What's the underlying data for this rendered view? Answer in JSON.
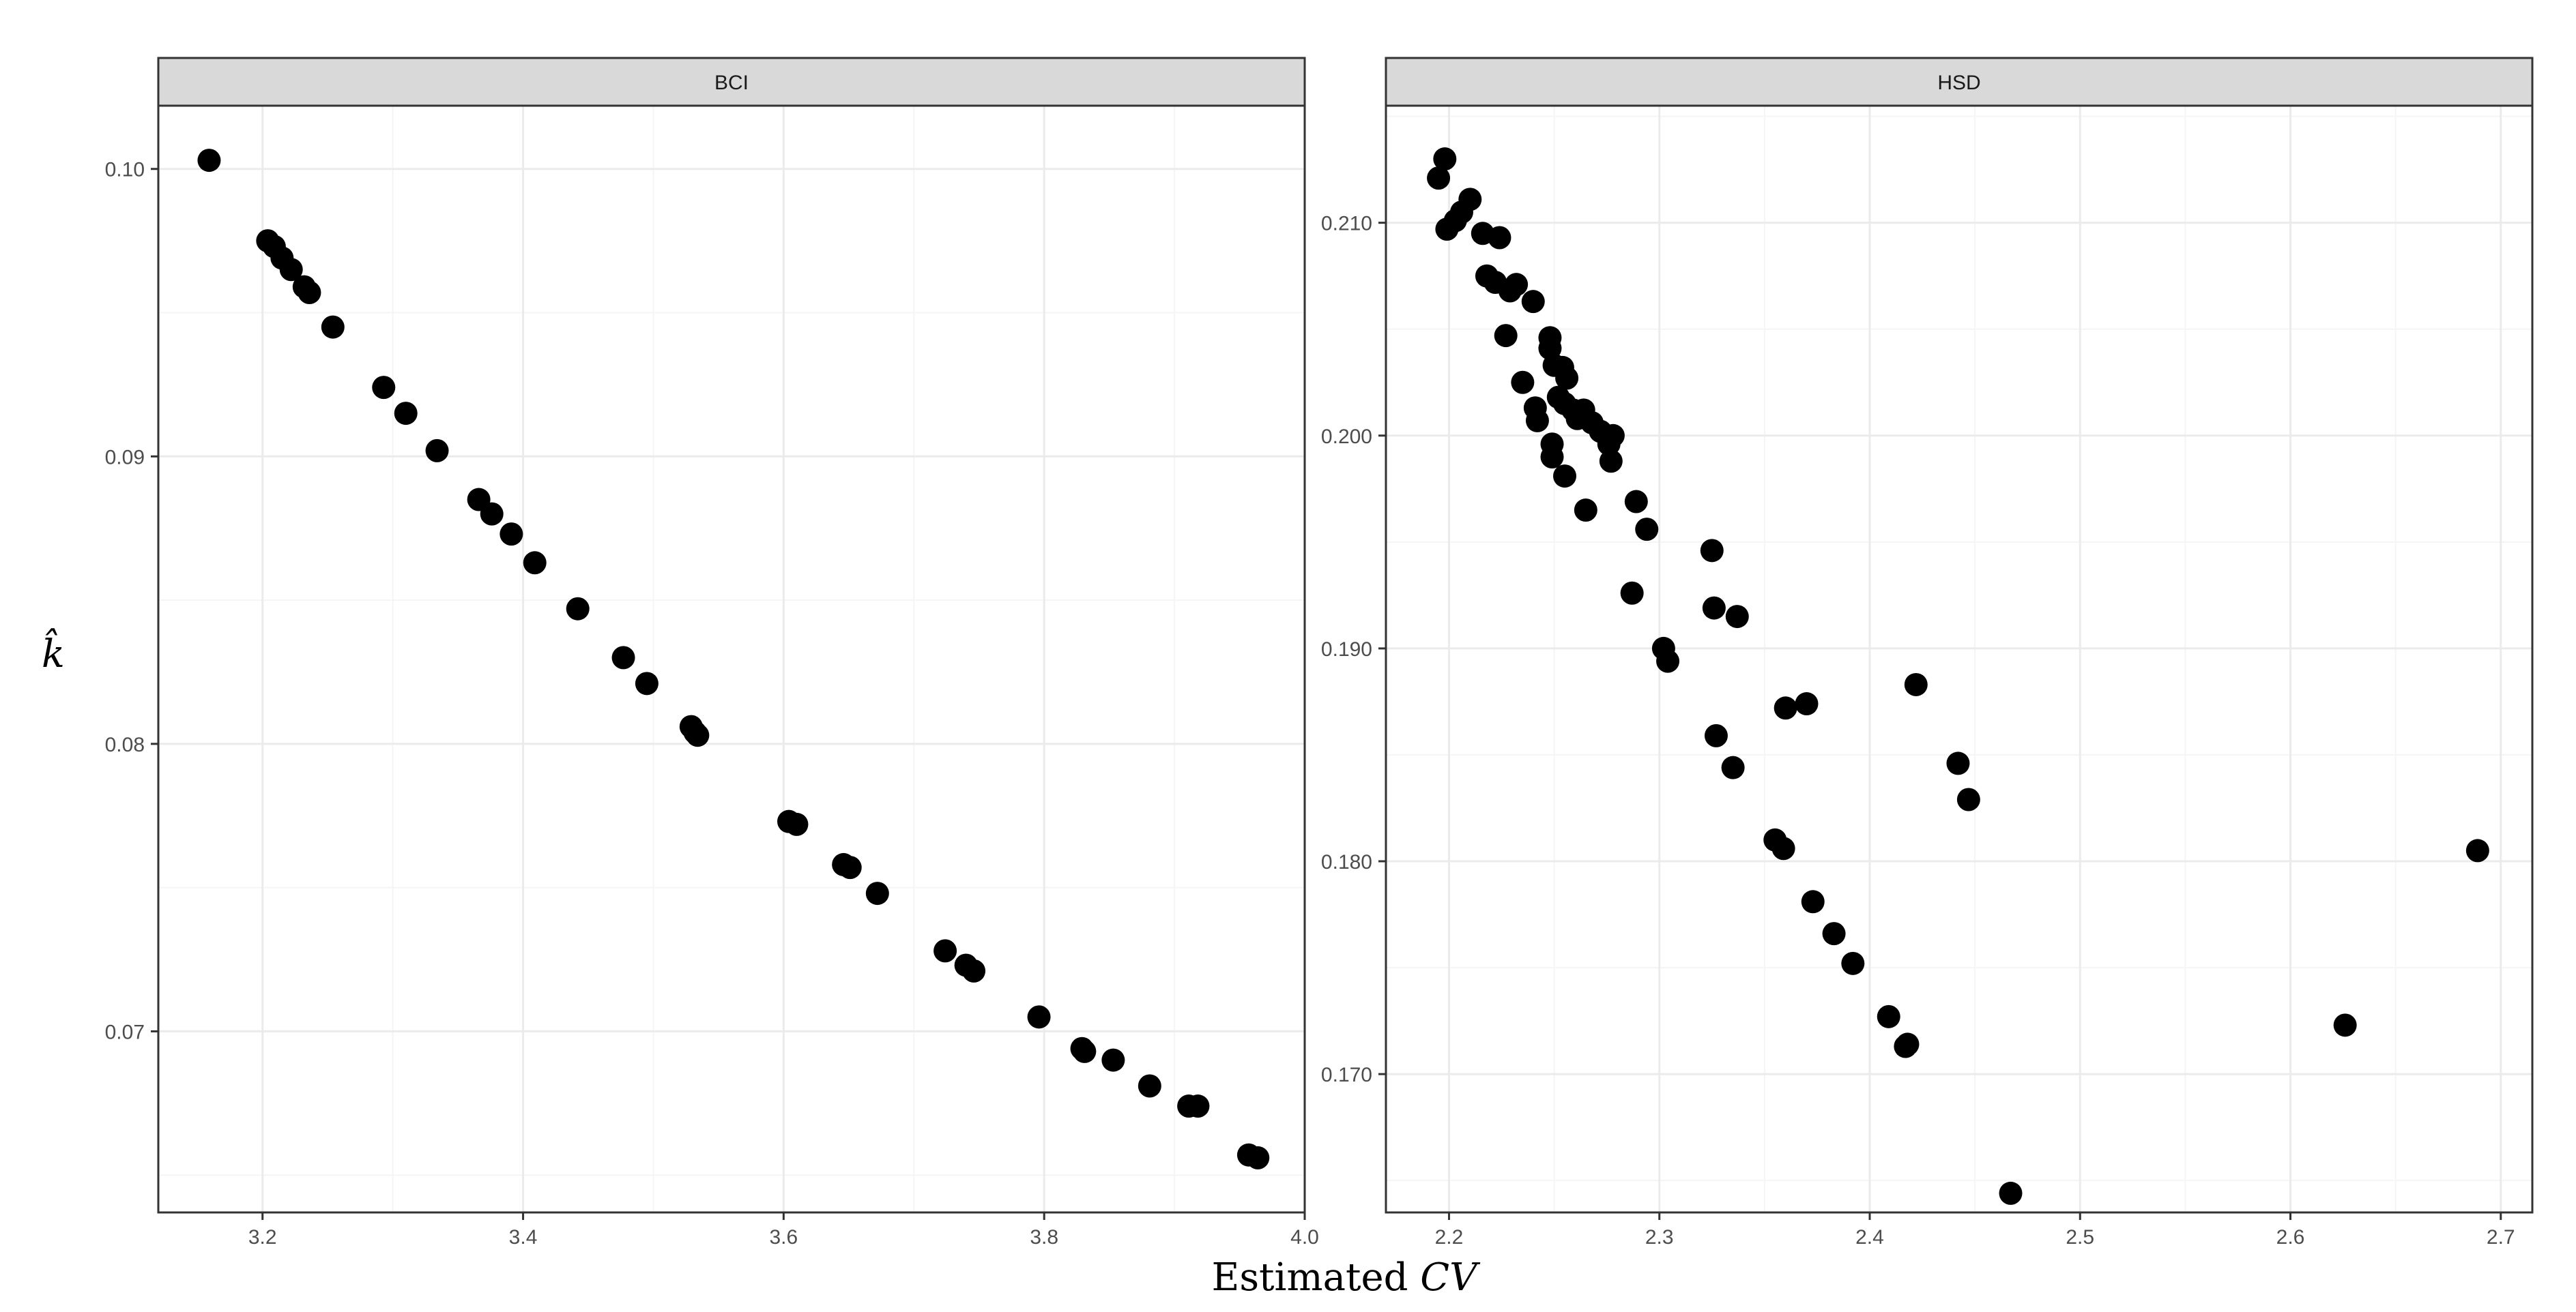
{
  "colors": {
    "point": "#000000",
    "panel_border": "#333333",
    "strip_fill": "#d9d9d9",
    "grid_major": "#ebebeb",
    "grid_minor": "#f5f5f5"
  },
  "axes": {
    "x_title_prefix": "Estimated ",
    "x_title_math": "CV",
    "y_title": "k̂"
  },
  "chart_data": [
    {
      "type": "scatter",
      "title": "BCI",
      "xlim": [
        3.12,
        4.0
      ],
      "ylim": [
        0.0637,
        0.1022
      ],
      "x_ticks": [
        3.2,
        3.4,
        3.6,
        3.8,
        4.0
      ],
      "x_tick_labels": [
        "3.2",
        "3.4",
        "3.6",
        "3.8",
        "4.0"
      ],
      "y_ticks": [
        0.07,
        0.08,
        0.09,
        0.1
      ],
      "y_tick_labels": [
        "0.07",
        "0.08",
        "0.09",
        "0.10"
      ],
      "grid": true,
      "points": [
        [
          3.159,
          0.1003
        ],
        [
          3.204,
          0.0975
        ],
        [
          3.209,
          0.0973
        ],
        [
          3.215,
          0.0969
        ],
        [
          3.222,
          0.0965
        ],
        [
          3.232,
          0.0959
        ],
        [
          3.236,
          0.0957
        ],
        [
          3.254,
          0.0945
        ],
        [
          3.293,
          0.0924
        ],
        [
          3.31,
          0.0915
        ],
        [
          3.334,
          0.0902
        ],
        [
          3.366,
          0.0885
        ],
        [
          3.376,
          0.088
        ],
        [
          3.391,
          0.0873
        ],
        [
          3.409,
          0.0863
        ],
        [
          3.442,
          0.0847
        ],
        [
          3.477,
          0.083
        ],
        [
          3.495,
          0.0821
        ],
        [
          3.529,
          0.0806
        ],
        [
          3.532,
          0.0804
        ],
        [
          3.534,
          0.0803
        ],
        [
          3.604,
          0.0773
        ],
        [
          3.61,
          0.0772
        ],
        [
          3.646,
          0.0758
        ],
        [
          3.651,
          0.0757
        ],
        [
          3.672,
          0.0748
        ],
        [
          3.724,
          0.0728
        ],
        [
          3.74,
          0.0723
        ],
        [
          3.746,
          0.0721
        ],
        [
          3.796,
          0.0705
        ],
        [
          3.829,
          0.0694
        ],
        [
          3.831,
          0.0693
        ],
        [
          3.853,
          0.069
        ],
        [
          3.881,
          0.0681
        ],
        [
          3.911,
          0.0674
        ],
        [
          3.918,
          0.0674
        ],
        [
          3.957,
          0.0657
        ],
        [
          3.964,
          0.0656
        ]
      ]
    },
    {
      "type": "scatter",
      "title": "HSD",
      "xlim": [
        2.17,
        2.715
      ],
      "ylim": [
        0.1635,
        0.2155
      ],
      "x_ticks": [
        2.2,
        2.3,
        2.4,
        2.5,
        2.6,
        2.7
      ],
      "x_tick_labels": [
        "2.2",
        "2.3",
        "2.4",
        "2.5",
        "2.6",
        "2.7"
      ],
      "y_ticks": [
        0.17,
        0.18,
        0.19,
        0.2,
        0.21
      ],
      "y_tick_labels": [
        "0.170",
        "0.180",
        "0.190",
        "0.200",
        "0.210"
      ],
      "grid": true,
      "points": [
        [
          2.195,
          0.2121
        ],
        [
          2.198,
          0.213
        ],
        [
          2.199,
          0.2097
        ],
        [
          2.203,
          0.2101
        ],
        [
          2.206,
          0.2105
        ],
        [
          2.21,
          0.2111
        ],
        [
          2.216,
          0.2095
        ],
        [
          2.218,
          0.2075
        ],
        [
          2.222,
          0.2072
        ],
        [
          2.224,
          0.2093
        ],
        [
          2.227,
          0.2047
        ],
        [
          2.229,
          0.2068
        ],
        [
          2.232,
          0.2071
        ],
        [
          2.235,
          0.2025
        ],
        [
          2.24,
          0.2063
        ],
        [
          2.241,
          0.2013
        ],
        [
          2.242,
          0.2007
        ],
        [
          2.248,
          0.2046
        ],
        [
          2.248,
          0.2041
        ],
        [
          2.249,
          0.1996
        ],
        [
          2.249,
          0.199
        ],
        [
          2.25,
          0.2033
        ],
        [
          2.252,
          0.2018
        ],
        [
          2.254,
          0.2032
        ],
        [
          2.255,
          0.2015
        ],
        [
          2.256,
          0.2027
        ],
        [
          2.255,
          0.1981
        ],
        [
          2.259,
          0.2012
        ],
        [
          2.261,
          0.2008
        ],
        [
          2.264,
          0.2012
        ],
        [
          2.265,
          0.1965
        ],
        [
          2.268,
          0.2006
        ],
        [
          2.272,
          0.2002
        ],
        [
          2.276,
          0.1996
        ],
        [
          2.277,
          0.1988
        ],
        [
          2.278,
          0.2
        ],
        [
          2.287,
          0.1926
        ],
        [
          2.289,
          0.1969
        ],
        [
          2.294,
          0.1956
        ],
        [
          2.302,
          0.19
        ],
        [
          2.304,
          0.1894
        ],
        [
          2.325,
          0.1946
        ],
        [
          2.326,
          0.1919
        ],
        [
          2.327,
          0.1859
        ],
        [
          2.335,
          0.1844
        ],
        [
          2.337,
          0.1915
        ],
        [
          2.355,
          0.181
        ],
        [
          2.359,
          0.1806
        ],
        [
          2.36,
          0.1872
        ],
        [
          2.37,
          0.1874
        ],
        [
          2.373,
          0.1781
        ],
        [
          2.383,
          0.1766
        ],
        [
          2.392,
          0.1752
        ],
        [
          2.409,
          0.1727
        ],
        [
          2.417,
          0.1713
        ],
        [
          2.418,
          0.1714
        ],
        [
          2.422,
          0.1883
        ],
        [
          2.442,
          0.1846
        ],
        [
          2.447,
          0.1829
        ],
        [
          2.467,
          0.1644
        ],
        [
          2.626,
          0.1723
        ],
        [
          2.689,
          0.1805
        ]
      ]
    }
  ]
}
